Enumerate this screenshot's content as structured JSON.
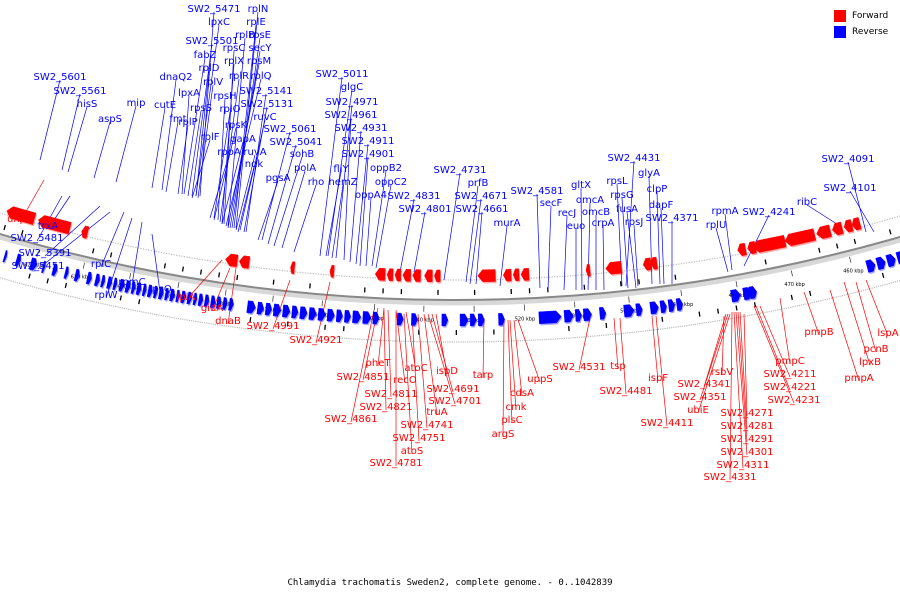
{
  "caption": "Chlamydia trachomatis Sweden2, complete genome. - 0..1042839",
  "legend": [
    {
      "label": "Forward",
      "color": "#ff0000"
    },
    {
      "label": "Reverse",
      "color": "#0000ff"
    }
  ],
  "colors": {
    "forward": "#ff0000",
    "reverse": "#0000ff",
    "backbone": "#888888"
  },
  "ticks": [
    "620 kbp",
    "610 kbp",
    "600 kbp",
    "590 kbp",
    "580 kbp",
    "570 kbp",
    "560 kbp",
    "550 kbp",
    "540 kbp",
    "530 kbp",
    "520 kbp",
    "510 kbp",
    "500 kbp",
    "490 kbp",
    "480 kbp",
    "470 kbp",
    "460 kbp"
  ],
  "reverse_labels": [
    "SW2_5471",
    "lpxC",
    "rplN",
    "rplE",
    "SW2_5501",
    "rplB",
    "rpsE",
    "fabZ",
    "rpsC",
    "secY",
    "dnaQ2",
    "rplD",
    "rplX",
    "rpsM",
    "mip",
    "rplV",
    "rplR",
    "rplQ",
    "SW2_5601",
    "cutE",
    "lpxA",
    "rpsH",
    "SW2_5141",
    "SW2_5561",
    "fmt",
    "rplO",
    "SW2_5131",
    "hisS",
    "rpsS",
    "ruvC",
    "aspS",
    "rplP",
    "rpsK",
    "SW2_5061",
    "rplF",
    "gapA",
    "SW2_5041",
    "rpoA",
    "ruvA",
    "sohB",
    "ndk",
    "polA",
    "pgsA",
    "rho",
    "SW2_5011",
    "glgC",
    "SW2_4971",
    "SW2_4961",
    "fliY",
    "SW2_4931",
    "hemZ",
    "SW2_4911",
    "oppB2",
    "SW2_4901",
    "oppC2",
    "oppA4",
    "SW2_4831",
    "SW2_4801",
    "SW2_4731",
    "prfB",
    "SW2_4671",
    "SW2_4661",
    "murA",
    "SW2_4581",
    "secF",
    "gltX",
    "omcA",
    "recJ",
    "omcB",
    "euo",
    "crpA",
    "SW2_4431",
    "rpsL",
    "glyA",
    "rpsG",
    "clpP",
    "fusA",
    "dapF",
    "rpsJ",
    "SW2_4371",
    "rpmA",
    "SW2_4241",
    "rplU",
    "SW2_4091",
    "SW2_4101",
    "ribC",
    "trxA",
    "SW2_5481",
    "SW2_5391",
    "SW2_5451",
    "rplC",
    "rplW",
    "rpmC",
    "rpsQ"
  ],
  "forward_labels": [
    "uhpC",
    "lplA",
    "gidA",
    "dnaB",
    "SW2_4991",
    "SW2_4921",
    "pheT",
    "SW2_4851",
    "recO",
    "atoC",
    "SW2_4811",
    "SW2_4821",
    "ispD",
    "SW2_4691",
    "SW2_4701",
    "truA",
    "SW2_4861",
    "SW2_4741",
    "SW2_4751",
    "atoS",
    "SW2_4781",
    "tarp",
    "uppS",
    "cdsA",
    "cmk",
    "plsC",
    "argS",
    "SW2_4531",
    "tsp",
    "SW2_4481",
    "ispF",
    "SW2_4411",
    "rsbV",
    "SW2_4341",
    "SW2_4351",
    "ubiE",
    "SW2_4271",
    "SW2_4281",
    "SW2_4291",
    "SW2_4301",
    "SW2_4311",
    "SW2_4331",
    "SW2_4211",
    "SW2_4221",
    "SW2_4231",
    "pmpC",
    "pmpB",
    "pmpA",
    "lpxB",
    "pcnB",
    "lspA"
  ]
}
